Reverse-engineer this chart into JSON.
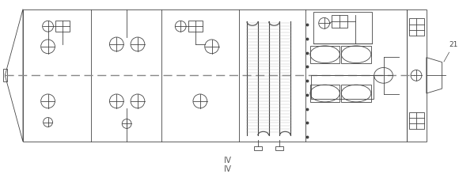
{
  "fig_width": 5.8,
  "fig_height": 2.39,
  "dpi": 100,
  "bg_color": "#ffffff",
  "line_color": "#444444",
  "footnote1": "Ⅳ",
  "footnote2": "Ⅳ"
}
